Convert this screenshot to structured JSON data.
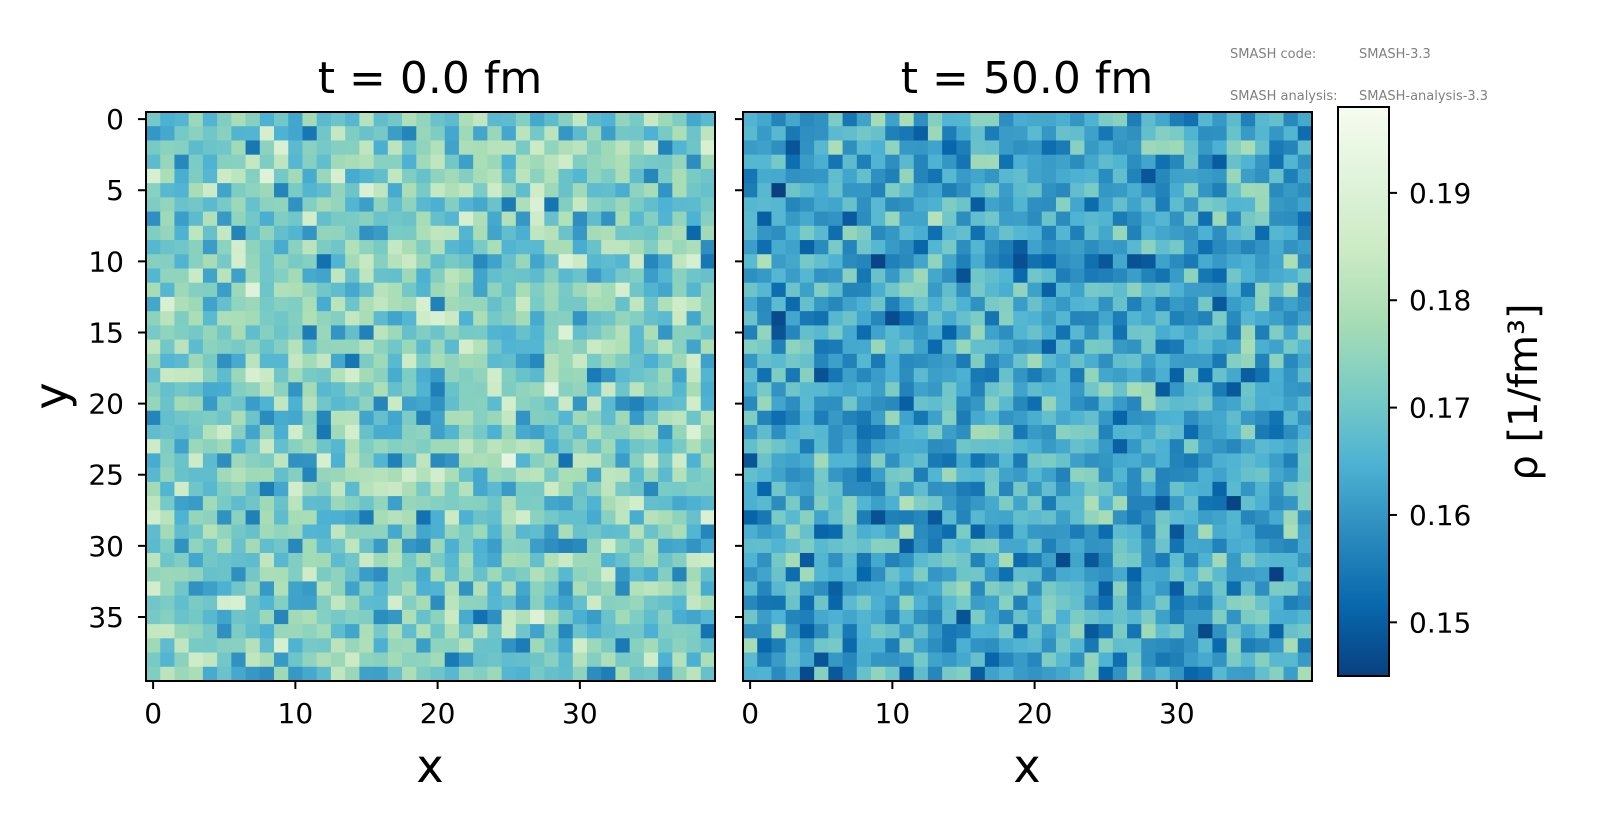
{
  "meta": {
    "code_label": "SMASH code:",
    "code_value": "SMASH-3.3",
    "analysis_label": "SMASH analysis:",
    "analysis_value": "SMASH-analysis-3.3"
  },
  "chart_data": {
    "type": "heatmap",
    "grid_size": [
      40,
      40
    ],
    "colormap": "GnBu_r",
    "colormap_stops": [
      "#084081",
      "#0868ac",
      "#2b8cbe",
      "#4eb3d3",
      "#7bccc4",
      "#a8ddb5",
      "#ccebc5",
      "#e0f3db",
      "#f7fcf0"
    ],
    "panels": [
      {
        "title": "t = 0.0 fm",
        "xlabel": "x",
        "ylabel": "y",
        "x_ticks": [
          "0",
          "10",
          "20",
          "30"
        ],
        "y_ticks": [
          "0",
          "5",
          "10",
          "15",
          "20",
          "25",
          "30",
          "35"
        ],
        "mean": 0.172,
        "spread": 0.0075,
        "seed": 17
      },
      {
        "title": "t = 50.0 fm",
        "xlabel": "x",
        "ylabel": "",
        "x_ticks": [
          "0",
          "10",
          "20",
          "30"
        ],
        "y_ticks": [],
        "mean": 0.163,
        "spread": 0.0065,
        "seed": 91
      }
    ],
    "colorbar": {
      "label": "ρ [1/fm³]",
      "range": [
        0.145,
        0.198
      ],
      "ticks": [
        "0.15",
        "0.16",
        "0.17",
        "0.18",
        "0.19"
      ]
    }
  }
}
